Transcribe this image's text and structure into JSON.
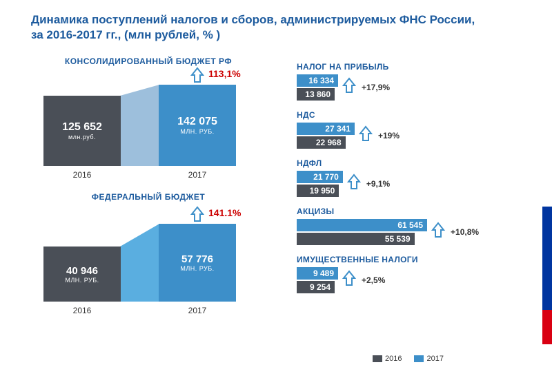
{
  "title_line1": "Динамика поступлений налогов и сборов, администрируемых ФНС России,",
  "title_line2": "за  2016-2017 гг., (млн рублей, % )",
  "colors": {
    "dark": "#4a4f57",
    "blue": "#3d8fc9",
    "lightblue": "#9dbfdc",
    "midblue": "#5aaee0",
    "title": "#1d5b9e",
    "growth": "#cc0000",
    "flag_blue": "#0035a0",
    "flag_red": "#d90012"
  },
  "big_charts": [
    {
      "title": "КОНСОЛИДИРОВАННЫЙ  БЮДЖЕТ РФ",
      "growth": "113,1%",
      "bridge_color": "#9dbfdc",
      "year1": {
        "label": "2016",
        "value": "125 652",
        "unit": "млн.руб.",
        "height": 102,
        "width": 112,
        "color": "#4a4f57",
        "val_fs": 16
      },
      "year2": {
        "label": "2017",
        "value": "142 075",
        "unit": "МЛН. РУБ.",
        "height": 118,
        "width": 112,
        "color": "#3d8fc9",
        "val_fs": 16
      },
      "gap": 55
    },
    {
      "title": "ФЕДЕРАЛЬНЫЙ  БЮДЖЕТ",
      "growth": "141.1%",
      "bridge_color": "#5aaee0",
      "year1": {
        "label": "2016",
        "value": "40 946",
        "unit": "МЛН. РУБ.",
        "height": 80,
        "width": 112,
        "color": "#4a4f57",
        "val_fs": 15
      },
      "year2": {
        "label": "2017",
        "value": "57 776",
        "unit": "МЛН. РУБ.",
        "height": 113,
        "width": 112,
        "color": "#3d8fc9",
        "val_fs": 15
      },
      "gap": 55
    }
  ],
  "hbars": {
    "max": 70000,
    "track_width": 215,
    "items": [
      {
        "title": "НАЛОГ НА ПРИБЫЛЬ",
        "v2017": 16334,
        "l2017": "16 334",
        "v2016": 13860,
        "l2016": "13 860",
        "pct": "+17,9%"
      },
      {
        "title": "НДС",
        "v2017": 27341,
        "l2017": "27 341",
        "v2016": 22968,
        "l2016": "22 968",
        "pct": "+19%"
      },
      {
        "title": "НДФЛ",
        "v2017": 21770,
        "l2017": "21 770",
        "v2016": 19950,
        "l2016": "19 950",
        "pct": "+9,1%"
      },
      {
        "title": "АКЦИЗЫ",
        "v2017": 61545,
        "l2017": "61 545",
        "v2016": 55539,
        "l2016": "55 539",
        "pct": "+10,8%"
      },
      {
        "title": "ИМУЩЕСТВЕННЫЕ  НАЛОГИ",
        "v2017": 9489,
        "l2017": "9 489",
        "v2016": 9254,
        "l2016": "9 254",
        "pct": "+2,5%"
      }
    ]
  },
  "legend": {
    "l2016": "2016",
    "l2017": "2017"
  }
}
